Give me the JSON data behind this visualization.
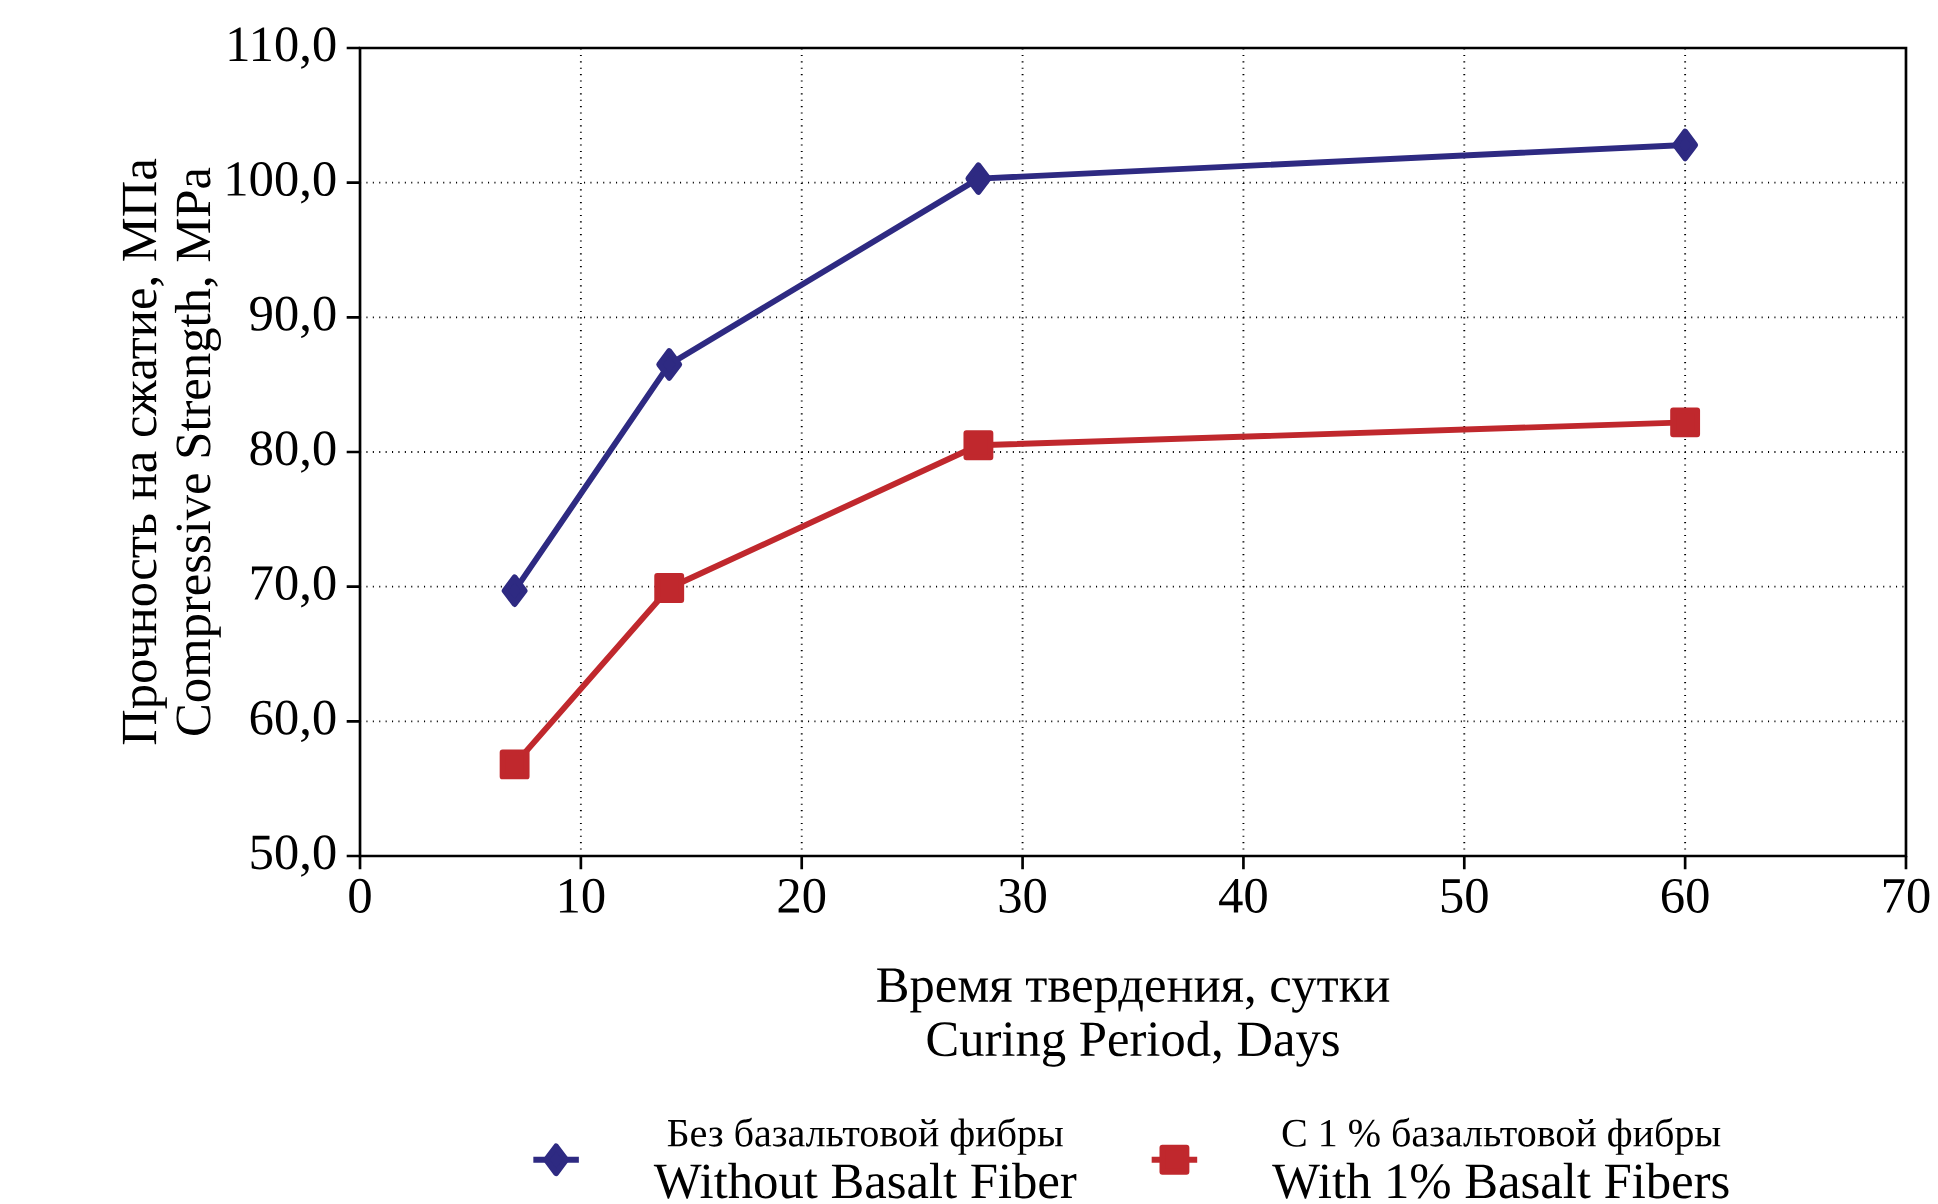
{
  "chart_data": {
    "type": "line",
    "xlabel": "Время твердения, сутки",
    "ylabel": "Прочность на сжатие, МПа",
    "annotations": [
      "Compressive Strength, MPa",
      "Curing Period, Days",
      "Без базальтовой фибры",
      "С 1 % базальтовой фибры"
    ],
    "x": [
      7,
      14,
      28,
      60
    ],
    "series": [
      {
        "name": "Without Basalt Fiber",
        "color": "#2e2a82",
        "marker": "diamond",
        "values": [
          69.7,
          86.5,
          100.3,
          102.8
        ]
      },
      {
        "name": "With 1% Basalt Fibers",
        "color": "#c0282d",
        "marker": "square",
        "values": [
          56.8,
          69.9,
          80.5,
          82.2
        ]
      }
    ],
    "xlim": [
      0,
      70
    ],
    "xticks": [
      0,
      10,
      20,
      30,
      40,
      50,
      60,
      70
    ],
    "ylim": [
      50,
      110
    ],
    "yticks": [
      {
        "value": 50,
        "label": "50,0"
      },
      {
        "value": 60,
        "label": "60,0"
      },
      {
        "value": 70,
        "label": "70,0"
      },
      {
        "value": 80,
        "label": "80,0"
      },
      {
        "value": 90,
        "label": "90,0"
      },
      {
        "value": 100,
        "label": "100,0"
      },
      {
        "value": 110,
        "label": "110,0"
      }
    ],
    "grid": true,
    "legend": "bottom",
    "line_style": "solid"
  }
}
